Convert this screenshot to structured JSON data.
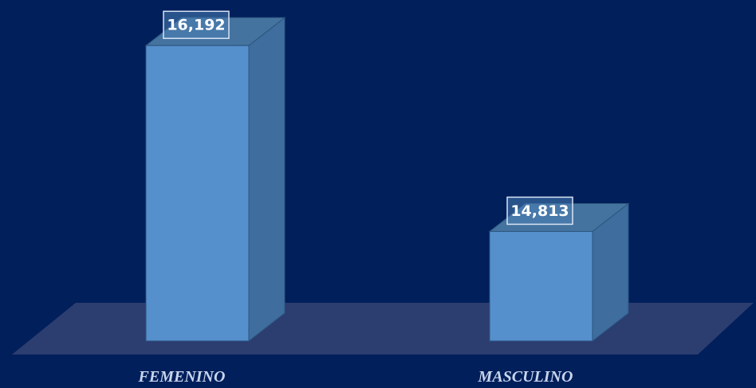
{
  "chart_data": {
    "type": "bar3d",
    "categories": [
      "FEMENINO",
      "MASCULINO"
    ],
    "values": [
      16192,
      14813
    ],
    "value_labels": [
      "16,192",
      "14,813"
    ],
    "color": "#5590cc",
    "ylim": [
      14000,
      16400
    ]
  }
}
